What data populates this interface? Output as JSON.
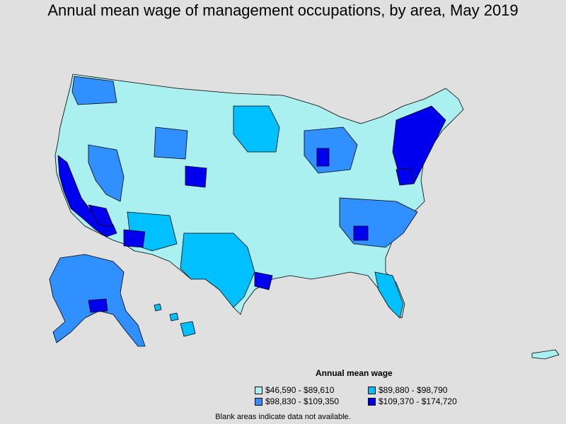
{
  "title": "Annual mean wage of management occupations, by area, May 2019",
  "legend": {
    "title": "Annual mean wage",
    "items": [
      {
        "label": "$46,590 - $89,610",
        "color": "#aaf0f0"
      },
      {
        "label": "$89,880 - $98,790",
        "color": "#00c0ff"
      },
      {
        "label": "$98,830 - $109,350",
        "color": "#3090ff"
      },
      {
        "label": "$109,370 - $174,720",
        "color": "#0000ee"
      }
    ]
  },
  "note": "Blank areas indicate data not available.",
  "colors": {
    "background": "#e0e0e0",
    "border": "#000000"
  }
}
